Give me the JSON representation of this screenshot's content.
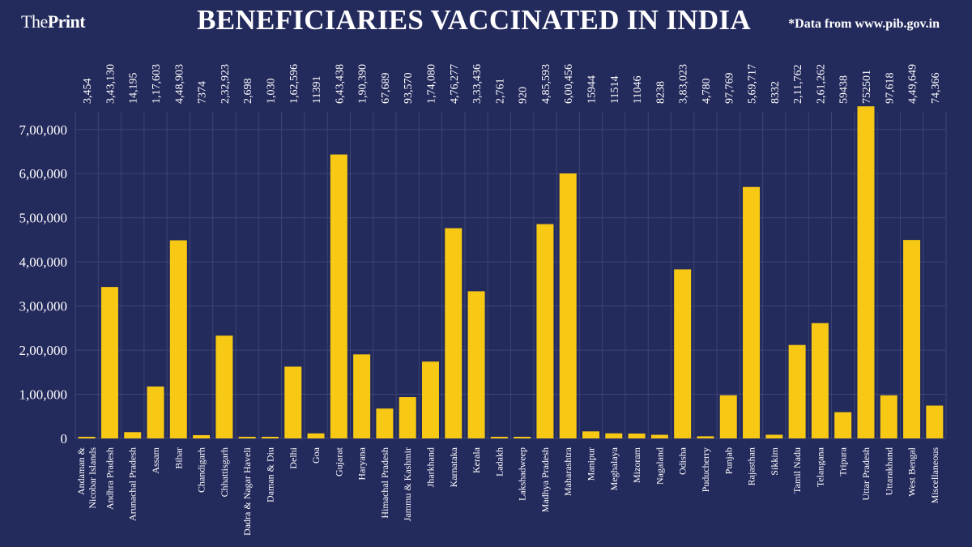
{
  "brand": {
    "part1": "The",
    "part2": "Print"
  },
  "title": "BENEFICIARIES VACCINATED IN INDIA",
  "source": "*Data from www.pib.gov.in",
  "colors": {
    "background": "#232a5c",
    "bar": "#f7c814",
    "grid": "#3d4577",
    "text": "#ffffff"
  },
  "chart_data": {
    "type": "bar",
    "title": "BENEFICIARIES VACCINATED IN INDIA",
    "xlabel": "",
    "ylabel": "",
    "ylim": [
      0,
      740000
    ],
    "yticks": [
      0,
      100000,
      200000,
      300000,
      400000,
      500000,
      600000,
      700000
    ],
    "ytick_labels": [
      "0",
      "1,00,000",
      "2,00,000",
      "3,00,000",
      "4,00,000",
      "5,00,000",
      "6,00,000",
      "7,00,000"
    ],
    "grid": true,
    "categories": [
      [
        "Andaman &",
        "Nicobar Islands"
      ],
      [
        "Andhra Pradesh"
      ],
      [
        "Arunachal Pradesh"
      ],
      [
        "Assam"
      ],
      [
        "Bihar"
      ],
      [
        "Chandigarh"
      ],
      [
        "Chhattisgarh"
      ],
      [
        "Dadra & Nagar Haveli"
      ],
      [
        "Daman & Diu"
      ],
      [
        "Delhi"
      ],
      [
        "Goa"
      ],
      [
        "Gujarat"
      ],
      [
        "Haryana"
      ],
      [
        "Himachal Pradesh"
      ],
      [
        "Jammu & Kashmir"
      ],
      [
        "Jharkhand"
      ],
      [
        "Karnataka"
      ],
      [
        "Kerala"
      ],
      [
        "Ladakh"
      ],
      [
        "Lakshadweep"
      ],
      [
        "Madhya Pradesh"
      ],
      [
        "Maharashtra"
      ],
      [
        "Manipur"
      ],
      [
        "Meghalaya"
      ],
      [
        "Mizoram"
      ],
      [
        "Nagaland"
      ],
      [
        "Odisha"
      ],
      [
        "Puducherry"
      ],
      [
        "Punjab"
      ],
      [
        "Rajasthan"
      ],
      [
        "Sikkim"
      ],
      [
        "Tamil Nadu"
      ],
      [
        "Telangana"
      ],
      [
        "Tripura"
      ],
      [
        "Uttar Pradesh"
      ],
      [
        "Uttarakhand"
      ],
      [
        "West Bengal"
      ],
      [
        "Miscellaneous"
      ]
    ],
    "values": [
      3454,
      343130,
      14195,
      117603,
      448903,
      7374,
      232923,
      2698,
      1030,
      162596,
      11391,
      643438,
      190390,
      67689,
      93570,
      174080,
      476277,
      333436,
      2761,
      920,
      485593,
      600456,
      15944,
      11514,
      11046,
      8238,
      383023,
      4780,
      97769,
      569717,
      8332,
      211762,
      261262,
      59438,
      752501,
      97618,
      449649,
      74366
    ],
    "value_labels": [
      "3,454",
      "3,43,130",
      "14,195",
      "1,17,603",
      "4,48,903",
      "7374",
      "2,32,923",
      "2,698",
      "1,030",
      "1,62,596",
      "11391",
      "6,43,438",
      "1,90,390",
      "67,689",
      "93,570",
      "1,74,080",
      "4,76,277",
      "3,33,436",
      "2,761",
      "920",
      "4,85,593",
      "6,00,456",
      "15944",
      "11514",
      "11046",
      "8238",
      "3,83,023",
      "4,780",
      "97,769",
      "5,69,717",
      "8332",
      "2,11,762",
      "2,61,262",
      "59438",
      "752501",
      "97,618",
      "4,49,649",
      "74,366"
    ]
  }
}
